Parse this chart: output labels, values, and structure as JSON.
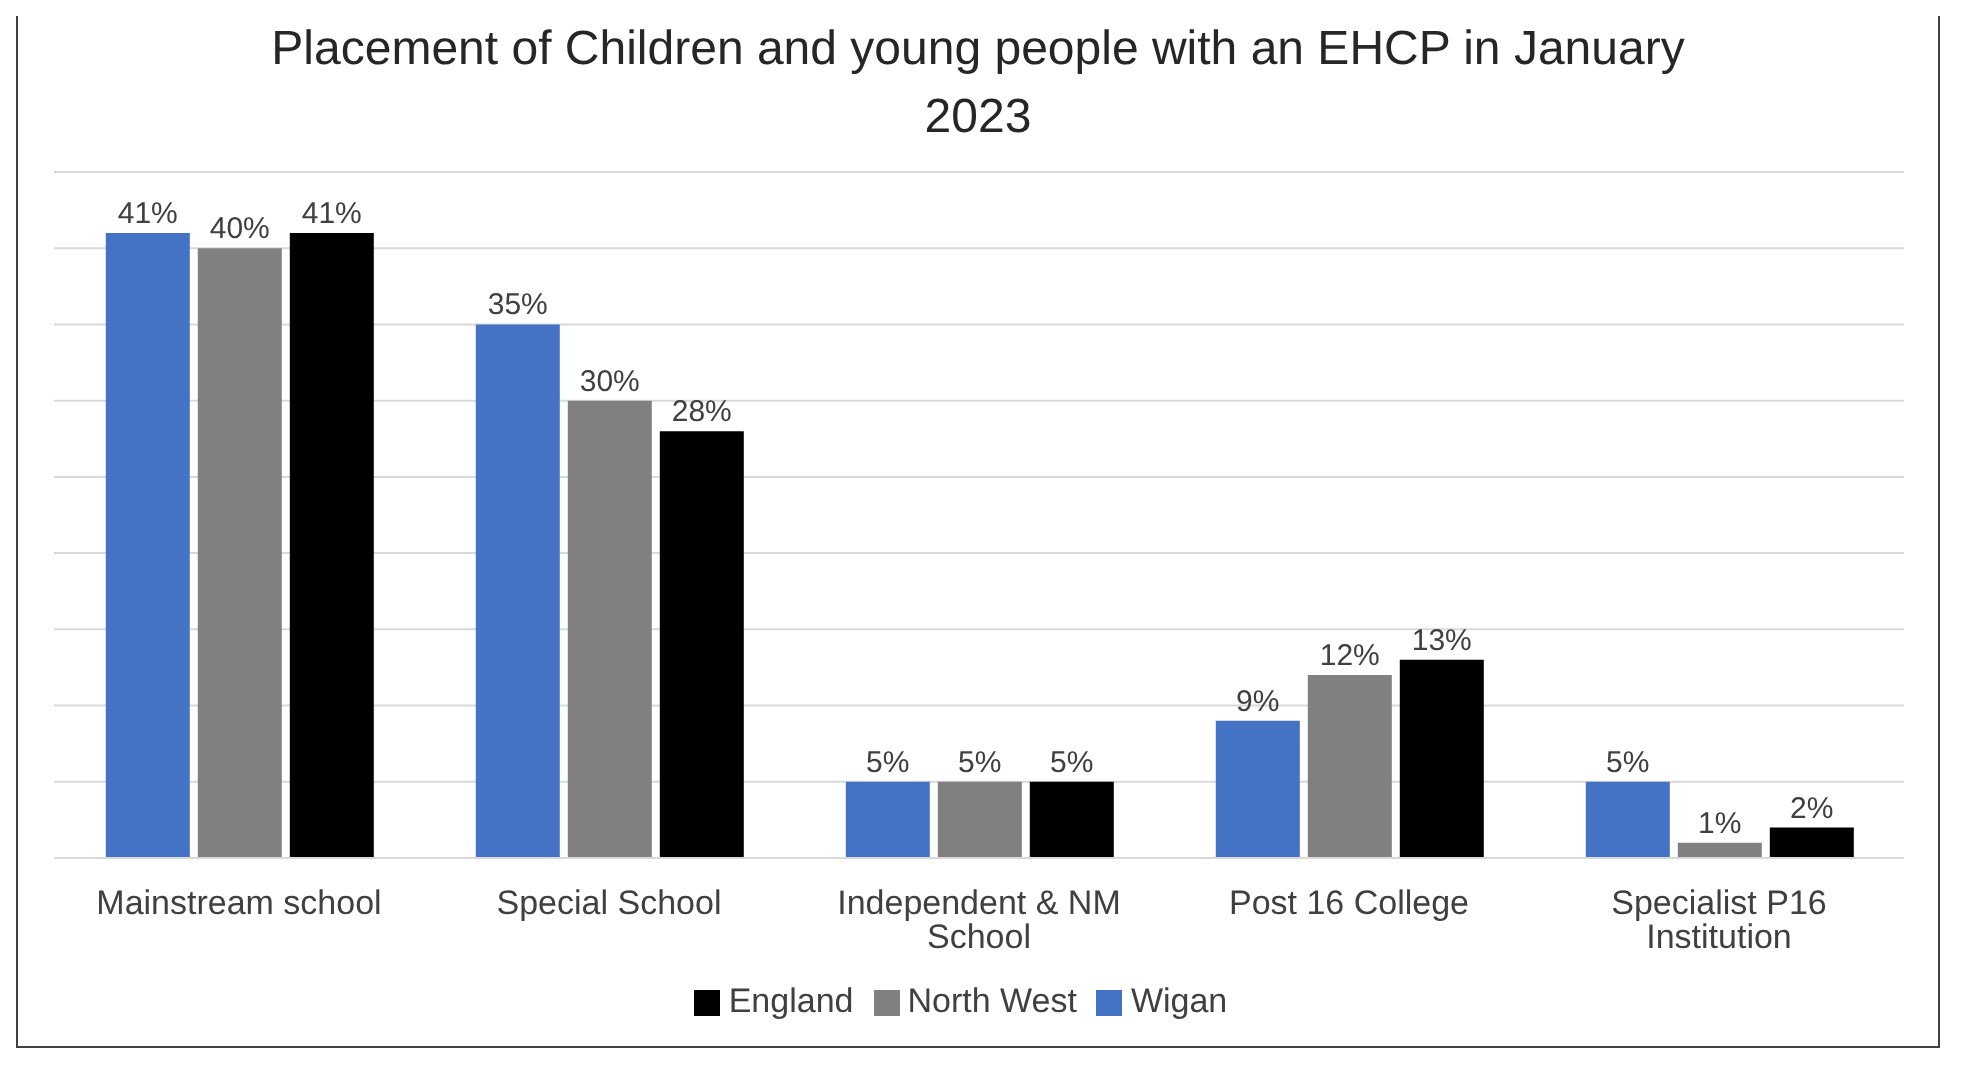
{
  "chart_data": {
    "type": "bar",
    "title": "Placement of Children and young people with an EHCP in January 2023",
    "categories": [
      "Mainstream school",
      "Special School",
      "Independent & NM School",
      "Post 16 College",
      "Specialist P16 Institution"
    ],
    "series": [
      {
        "name": "Wigan",
        "color": "#4472c4",
        "values": [
          41,
          35,
          5,
          9,
          5
        ],
        "value_labels": [
          "41%",
          "35%",
          "5%",
          "9%",
          "5%"
        ]
      },
      {
        "name": "North West",
        "color": "#808080",
        "values": [
          40,
          30,
          5,
          12,
          1
        ],
        "value_labels": [
          "40%",
          "30%",
          "5%",
          "12%",
          "1%"
        ]
      },
      {
        "name": "England",
        "color": "#000000",
        "values": [
          41,
          28,
          5,
          13,
          2
        ],
        "value_labels": [
          "41%",
          "28%",
          "5%",
          "13%",
          "2%"
        ]
      }
    ],
    "ylim": [
      0,
      45
    ],
    "grid": "y",
    "legend": "bottom",
    "tick_labels": "x"
  }
}
